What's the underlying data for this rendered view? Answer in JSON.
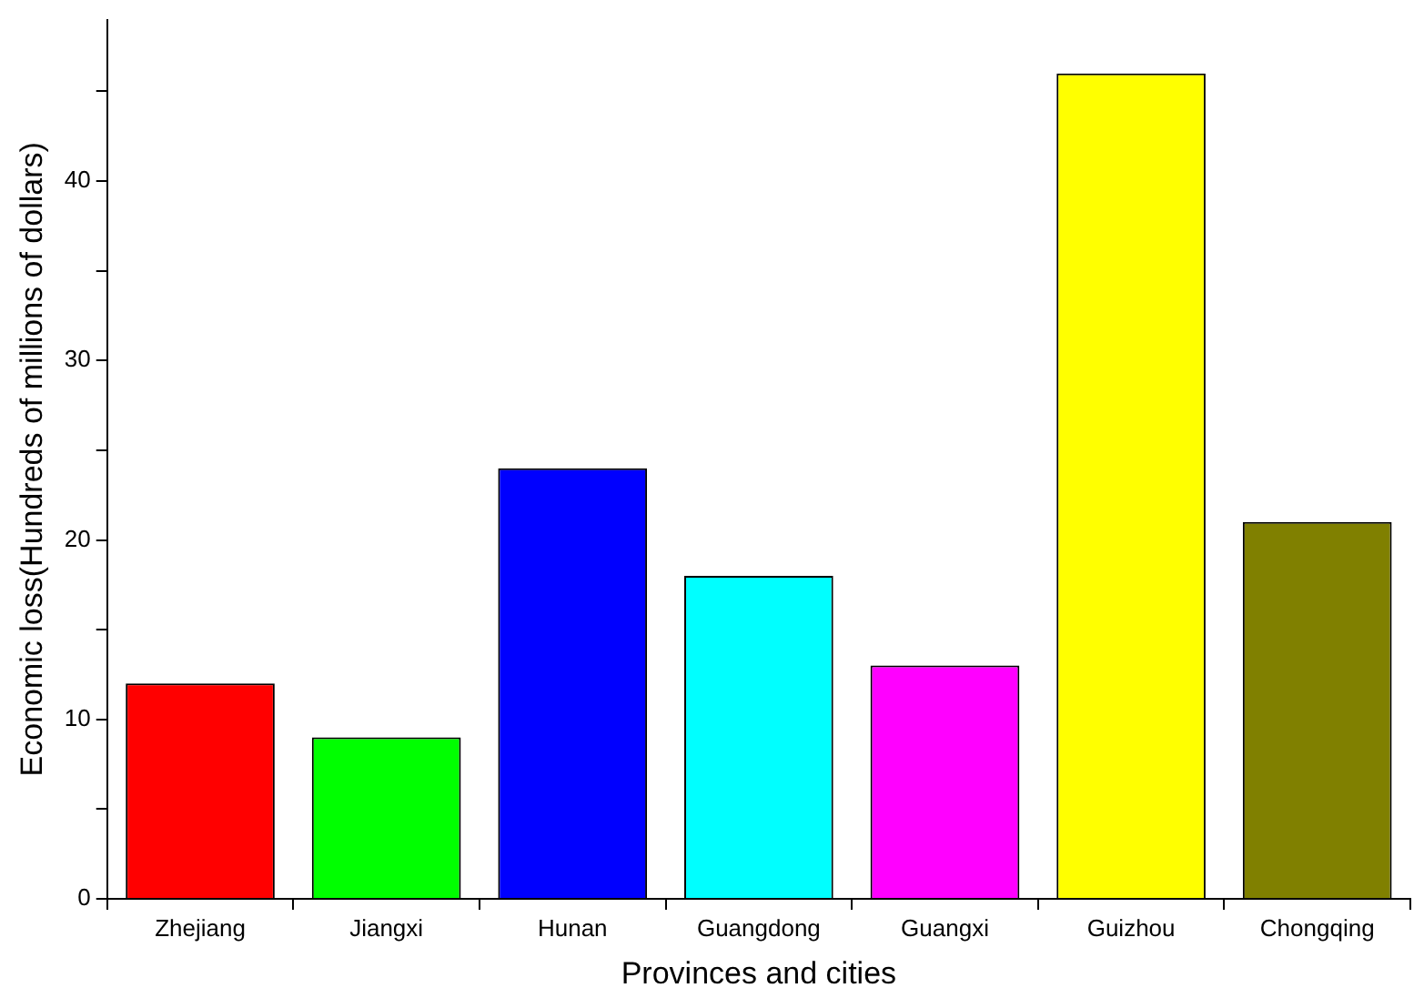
{
  "chart_data": {
    "type": "bar",
    "xlabel": "Provinces and cities",
    "ylabel": "Economic loss(Hundreds of millions of dollars)",
    "categories": [
      "Zhejiang",
      "Jiangxi",
      "Hunan",
      "Guangdong",
      "Guangxi",
      "Guizhou",
      "Chongqing"
    ],
    "values": [
      12,
      9,
      24,
      18,
      13,
      46,
      21
    ],
    "colors": [
      "#ff0000",
      "#00ff00",
      "#0000ff",
      "#00ffff",
      "#ff00ff",
      "#ffff00",
      "#808000"
    ],
    "ylim": [
      0,
      49
    ],
    "yticks": [
      0,
      {
        "value": 5,
        "label": null
      },
      10,
      {
        "value": 15,
        "label": null
      },
      20,
      {
        "value": 25,
        "label": null
      },
      30,
      {
        "value": 35,
        "label": null
      },
      40,
      {
        "value": 45,
        "label": null
      }
    ],
    "grid": false
  }
}
